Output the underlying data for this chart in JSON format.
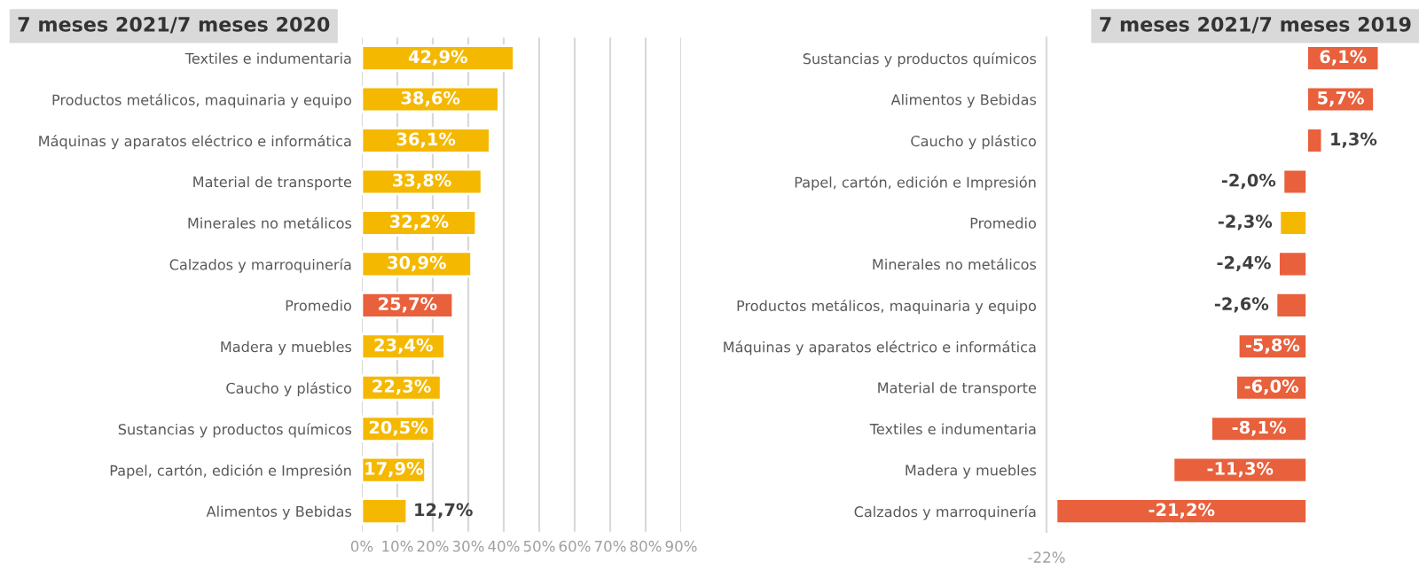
{
  "chart_data": [
    {
      "type": "bar",
      "orientation": "horizontal",
      "title": "7 meses 2021/7 meses 2020",
      "categories": [
        "Textiles e indumentaria",
        "Productos metálicos, maquinaria y equipo",
        "Máquinas y aparatos eléctrico e informática",
        "Material de transporte",
        "Minerales no metálicos",
        "Calzados y marroquinería",
        "Promedio",
        "Madera y muebles",
        "Caucho y plástico",
        "Sustancias y productos químicos",
        "Papel, cartón, edición e Impresión",
        "Alimentos y Bebidas"
      ],
      "values": [
        42.9,
        38.6,
        36.1,
        33.8,
        32.2,
        30.9,
        25.7,
        23.4,
        22.3,
        20.5,
        17.9,
        12.7
      ],
      "value_labels": [
        "42,9%",
        "38,6%",
        "36,1%",
        "33,8%",
        "32,2%",
        "30,9%",
        "25,7%",
        "23,4%",
        "22,3%",
        "20,5%",
        "17,9%",
        "12,7%"
      ],
      "colors": [
        "#f5b800",
        "#f5b800",
        "#f5b800",
        "#f5b800",
        "#f5b800",
        "#f5b800",
        "#e8603c",
        "#f5b800",
        "#f5b800",
        "#f5b800",
        "#f5b800",
        "#f5b800"
      ],
      "xlim": [
        0,
        90
      ],
      "xticks": [
        {
          "value": 0,
          "label": "0%"
        },
        {
          "value": 10,
          "label": "10%"
        },
        {
          "value": 20,
          "label": "20%"
        },
        {
          "value": 30,
          "label": "30%"
        },
        {
          "value": 40,
          "label": "40%"
        },
        {
          "value": 50,
          "label": "50%"
        },
        {
          "value": 60,
          "label": "60%"
        },
        {
          "value": 70,
          "label": "70%"
        },
        {
          "value": 80,
          "label": "80%"
        },
        {
          "value": 90,
          "label": "90%"
        }
      ],
      "grid": "x"
    },
    {
      "type": "bar",
      "orientation": "horizontal",
      "title": "7 meses 2021/7 meses 2019",
      "categories": [
        "Sustancias y productos químicos",
        "Alimentos y Bebidas",
        "Caucho y plástico",
        "Papel, cartón, edición e Impresión",
        "Promedio",
        "Minerales no metálicos",
        "Productos metálicos, maquinaria y equipo",
        "Máquinas y aparatos eléctrico e informática",
        "Material de transporte",
        "Textiles e indumentaria",
        "Madera y muebles",
        "Calzados y marroquinería"
      ],
      "values": [
        6.1,
        5.7,
        1.3,
        -2.0,
        -2.3,
        -2.4,
        -2.6,
        -5.8,
        -6.0,
        -8.1,
        -11.3,
        -21.2
      ],
      "value_labels": [
        "6,1%",
        "5,7%",
        "1,3%",
        "-2,0%",
        "-2,3%",
        "-2,4%",
        "-2,6%",
        "-5,8%",
        "-6,0%",
        "-8,1%",
        "-11,3%",
        "-21,2%"
      ],
      "colors": [
        "#e8603c",
        "#e8603c",
        "#e8603c",
        "#e8603c",
        "#f5b800",
        "#e8603c",
        "#e8603c",
        "#e8603c",
        "#e8603c",
        "#e8603c",
        "#e8603c",
        "#e8603c"
      ],
      "annotations": [
        "-22%"
      ],
      "grid": false
    }
  ]
}
